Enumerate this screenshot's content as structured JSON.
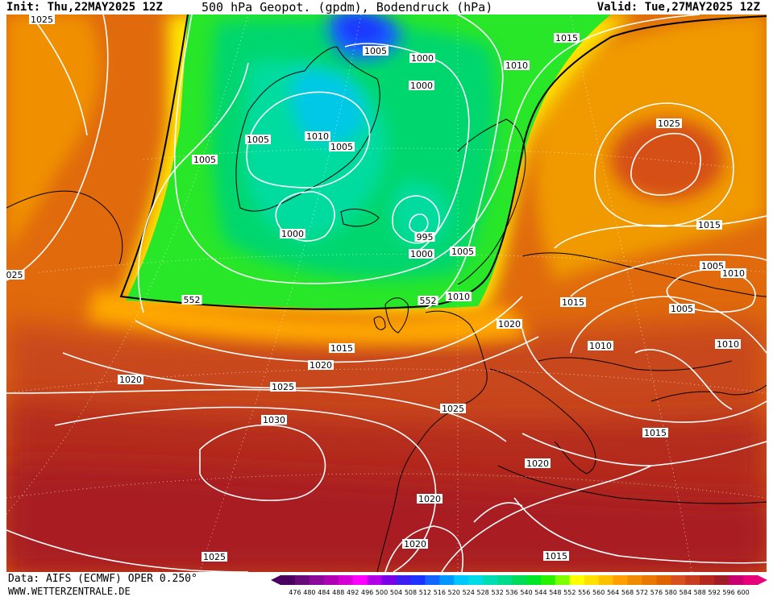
{
  "header": {
    "init": "Init: Thu,22MAY2025 12Z",
    "title": "500 hPa Geopot. (gpdm), Bodendruck (hPa)",
    "valid": "Valid: Tue,27MAY2025 12Z"
  },
  "footer": {
    "data_source": "Data: AIFS (ECMWF) OPER 0.250°",
    "website": "WWW.WETTERZENTRALE.DE"
  },
  "legend": {
    "ticks": [
      "476",
      "480",
      "484",
      "488",
      "492",
      "496",
      "500",
      "504",
      "508",
      "512",
      "516",
      "520",
      "524",
      "528",
      "532",
      "536",
      "540",
      "544",
      "548",
      "552",
      "556",
      "560",
      "564",
      "568",
      "572",
      "576",
      "580",
      "584",
      "588",
      "592",
      "596",
      "600"
    ],
    "colors": [
      "#4b0060",
      "#6a0a7a",
      "#8a0a9a",
      "#b000b4",
      "#d400d4",
      "#ff00ff",
      "#b400e6",
      "#7a00e6",
      "#3c1ef0",
      "#1e32ff",
      "#1464ff",
      "#0096ff",
      "#00c8ff",
      "#00dce6",
      "#00dcb4",
      "#00dc8c",
      "#00dc5a",
      "#00e628",
      "#28f000",
      "#7cff00",
      "#ffff00",
      "#ffe000",
      "#ffc000",
      "#ffa000",
      "#f08c00",
      "#e87800",
      "#e06400",
      "#d85020",
      "#c83c20",
      "#b42820",
      "#a01e28",
      "#c8006e",
      "#e6007a"
    ]
  },
  "contour_labels": [
    {
      "id": "slp-1025-nw",
      "text": "1025"
    },
    {
      "id": "slp-1005-gl-top",
      "text": "1005"
    },
    {
      "id": "slp-1000-a",
      "text": "1000"
    },
    {
      "id": "slp-1000-b",
      "text": "1000"
    },
    {
      "id": "slp-1015-top",
      "text": "1015"
    },
    {
      "id": "slp-1010-top",
      "text": "1010"
    },
    {
      "id": "slp-1005-gl-w",
      "text": "1005"
    },
    {
      "id": "slp-1010-gl",
      "text": "1010"
    },
    {
      "id": "slp-1005-gl-e",
      "text": "1005"
    },
    {
      "id": "slp-1005-lab",
      "text": "1005"
    },
    {
      "id": "slp-1000-ice",
      "text": "1000"
    },
    {
      "id": "slp-995",
      "text": "995"
    },
    {
      "id": "slp-1000-c",
      "text": "1000"
    },
    {
      "id": "slp-1005-nor",
      "text": "1005"
    },
    {
      "id": "slp-1025-scand",
      "text": "1025"
    },
    {
      "id": "slp-1015-east",
      "text": "1015"
    },
    {
      "id": "slp-1005-east",
      "text": "1005"
    },
    {
      "id": "slp-1010-east",
      "text": "1010"
    },
    {
      "id": "slp-1025-west",
      "text": "025"
    },
    {
      "id": "gph-552-w",
      "text": "552"
    },
    {
      "id": "gph-552-e",
      "text": "552"
    },
    {
      "id": "slp-1010-uk",
      "text": "1010"
    },
    {
      "id": "slp-1015-cen",
      "text": "1015"
    },
    {
      "id": "slp-1005-cen",
      "text": "1005"
    },
    {
      "id": "slp-1020-fr",
      "text": "1020"
    },
    {
      "id": "slp-1010-ger",
      "text": "1010"
    },
    {
      "id": "slp-1010-blk",
      "text": "1010"
    },
    {
      "id": "slp-1015-atl",
      "text": "1015"
    },
    {
      "id": "slp-1020-atl",
      "text": "1020"
    },
    {
      "id": "slp-1020-w",
      "text": "1020"
    },
    {
      "id": "slp-1025-atl",
      "text": "1025"
    },
    {
      "id": "slp-1025-ib",
      "text": "1025"
    },
    {
      "id": "slp-1030",
      "text": "1030"
    },
    {
      "id": "slp-1015-med",
      "text": "1015"
    },
    {
      "id": "slp-1020-med",
      "text": "1020"
    },
    {
      "id": "slp-1020-afr",
      "text": "1020"
    },
    {
      "id": "slp-1020-afr2",
      "text": "1020"
    },
    {
      "id": "slp-1025-sw",
      "text": "1025"
    },
    {
      "id": "slp-1015-se",
      "text": "1015"
    }
  ]
}
